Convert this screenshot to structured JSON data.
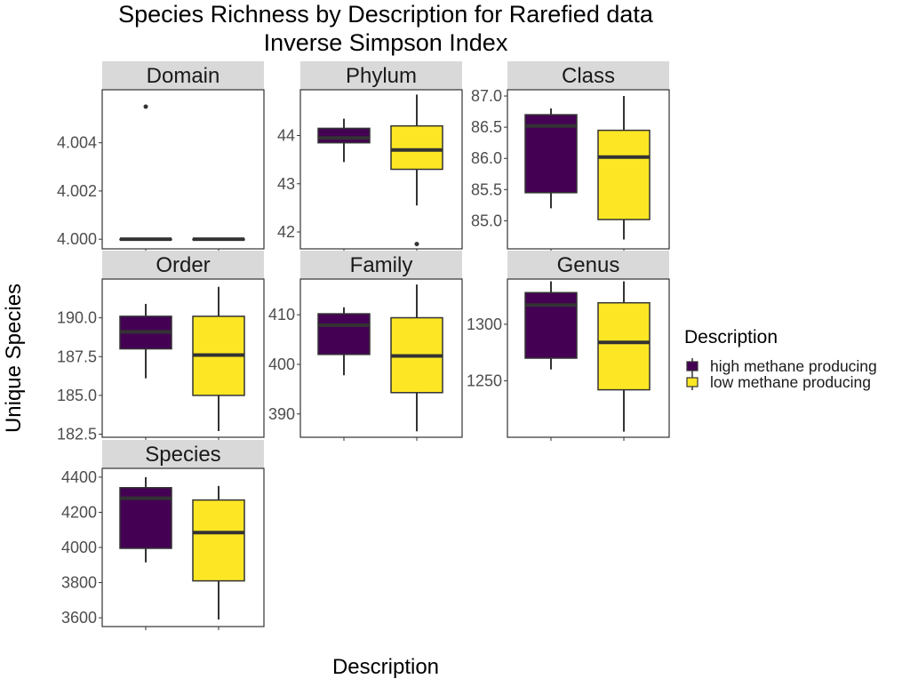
{
  "chart_data": {
    "type": "boxplot",
    "title_line1": "Species Richness by Description for Rarefied data",
    "title_line2": "Inverse Simpson Index",
    "xlabel": "Description",
    "ylabel": "Unique Species",
    "legend": {
      "title": "Description",
      "position": "right",
      "items": [
        {
          "label": "high methane producing",
          "color": "#440154"
        },
        {
          "label": "low methane producing",
          "color": "#FDE725"
        }
      ]
    },
    "groups": [
      "high methane producing",
      "low methane producing"
    ],
    "facets": [
      {
        "name": "Domain",
        "ylim": [
          3.9996,
          4.0062
        ],
        "ticks": [
          4.0,
          4.002,
          4.004
        ],
        "tick_labels": [
          "4.000",
          "4.002",
          "4.004"
        ],
        "boxes": [
          {
            "group": "high methane producing",
            "min": 4.0,
            "q1": 4.0,
            "median": 4.0,
            "q3": 4.0,
            "max": 4.0,
            "outliers": [
              4.0055
            ]
          },
          {
            "group": "low methane producing",
            "min": 4.0,
            "q1": 4.0,
            "median": 4.0,
            "q3": 4.0,
            "max": 4.0,
            "outliers": []
          }
        ]
      },
      {
        "name": "Phylum",
        "ylim": [
          41.65,
          44.95
        ],
        "ticks": [
          42,
          43,
          44
        ],
        "tick_labels": [
          "42",
          "43",
          "44"
        ],
        "boxes": [
          {
            "group": "high methane producing",
            "min": 43.45,
            "q1": 43.85,
            "median": 43.95,
            "q3": 44.15,
            "max": 44.35,
            "outliers": []
          },
          {
            "group": "low methane producing",
            "min": 42.55,
            "q1": 43.3,
            "median": 43.7,
            "q3": 44.2,
            "max": 44.85,
            "outliers": [
              41.75
            ]
          }
        ]
      },
      {
        "name": "Class",
        "ylim": [
          84.55,
          87.1
        ],
        "ticks": [
          85.0,
          85.5,
          86.0,
          86.5,
          87.0
        ],
        "tick_labels": [
          "85.0",
          "85.5",
          "86.0",
          "86.5",
          "87.0"
        ],
        "boxes": [
          {
            "group": "high methane producing",
            "min": 85.2,
            "q1": 85.45,
            "median": 86.52,
            "q3": 86.7,
            "max": 86.8,
            "outliers": []
          },
          {
            "group": "low methane producing",
            "min": 84.7,
            "q1": 85.02,
            "median": 86.02,
            "q3": 86.45,
            "max": 87.0,
            "outliers": []
          }
        ]
      },
      {
        "name": "Order",
        "ylim": [
          182.3,
          192.5
        ],
        "ticks": [
          182.5,
          185.0,
          187.5,
          190.0
        ],
        "tick_labels": [
          "182.5",
          "185.0",
          "187.5",
          "190.0"
        ],
        "boxes": [
          {
            "group": "high methane producing",
            "min": 186.1,
            "q1": 188.0,
            "median": 189.1,
            "q3": 190.1,
            "max": 190.9,
            "outliers": []
          },
          {
            "group": "low methane producing",
            "min": 182.7,
            "q1": 185.0,
            "median": 187.6,
            "q3": 190.1,
            "max": 192.0,
            "outliers": []
          }
        ]
      },
      {
        "name": "Family",
        "ylim": [
          385.3,
          417.2
        ],
        "ticks": [
          390,
          400,
          410
        ],
        "tick_labels": [
          "390",
          "400",
          "410"
        ],
        "boxes": [
          {
            "group": "high methane producing",
            "min": 397.8,
            "q1": 402.0,
            "median": 407.9,
            "q3": 410.2,
            "max": 411.5,
            "outliers": []
          },
          {
            "group": "low methane producing",
            "min": 386.5,
            "q1": 394.3,
            "median": 401.7,
            "q3": 409.4,
            "max": 416.1,
            "outliers": []
          }
        ]
      },
      {
        "name": "Genus",
        "ylim": [
          1200,
          1340
        ],
        "ticks": [
          1250,
          1300
        ],
        "tick_labels": [
          "1250",
          "1300"
        ],
        "boxes": [
          {
            "group": "high methane producing",
            "min": 1260,
            "q1": 1270,
            "median": 1317,
            "q3": 1328,
            "max": 1338,
            "outliers": []
          },
          {
            "group": "low methane producing",
            "min": 1205,
            "q1": 1242,
            "median": 1284,
            "q3": 1319,
            "max": 1338,
            "outliers": []
          }
        ]
      },
      {
        "name": "Species",
        "ylim": [
          3550,
          4450
        ],
        "ticks": [
          3600,
          3800,
          4000,
          4200,
          4400
        ],
        "tick_labels": [
          "3600",
          "3800",
          "4000",
          "4200",
          "4400"
        ],
        "boxes": [
          {
            "group": "high methane producing",
            "min": 3915,
            "q1": 3995,
            "median": 4280,
            "q3": 4340,
            "max": 4400,
            "outliers": []
          },
          {
            "group": "low methane producing",
            "min": 3590,
            "q1": 3810,
            "median": 4085,
            "q3": 4270,
            "max": 4350,
            "outliers": []
          }
        ]
      }
    ]
  }
}
